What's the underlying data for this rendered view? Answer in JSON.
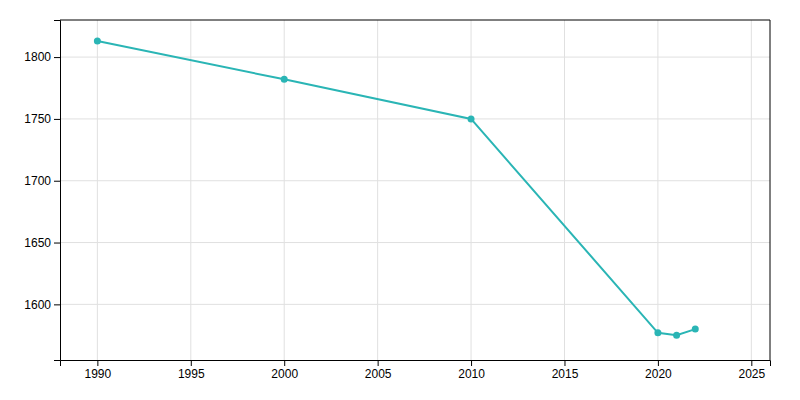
{
  "chart_data": {
    "type": "line",
    "x": [
      1990,
      2000,
      2010,
      2020,
      2021,
      2022
    ],
    "values": [
      1813,
      1782,
      1750,
      1577,
      1575,
      1580
    ],
    "color": "#2ab5b5",
    "marker": "circle",
    "xlim": [
      1988,
      2026
    ],
    "xticks": [
      1990,
      1995,
      2000,
      2005,
      2010,
      2015,
      2020,
      2025
    ],
    "ylim": [
      1555,
      1830
    ],
    "yticks": [
      1600,
      1650,
      1700,
      1750,
      1800
    ],
    "grid": true
  }
}
